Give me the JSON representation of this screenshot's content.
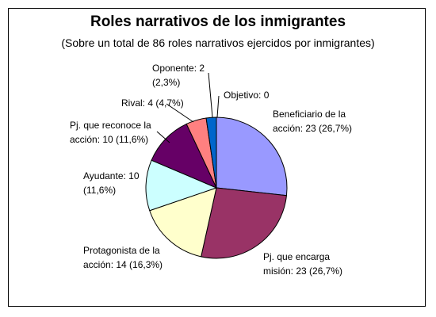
{
  "chart_data": {
    "type": "pie",
    "title": "Roles narrativos de los inmigrantes",
    "subtitle": "(Sobre un total de 86 roles narrativos ejercidos por inmigrantes)",
    "total": 86,
    "slices": [
      {
        "label": "Objetivo",
        "value": 0,
        "percent": "",
        "text": [
          "Objetivo: 0"
        ],
        "color": "#ffffff"
      },
      {
        "label": "Beneficiario de la acción",
        "value": 23,
        "percent": "26,7%",
        "text": [
          "Beneficiario de la",
          "acción: 23 (26,7%)"
        ],
        "color": "#9999ff"
      },
      {
        "label": "Pj. que encarga misión",
        "value": 23,
        "percent": "26,7%",
        "text": [
          "Pj. que encarga",
          "misión: 23 (26,7%)"
        ],
        "color": "#993366"
      },
      {
        "label": "Protagonista de la acción",
        "value": 14,
        "percent": "16,3%",
        "text": [
          "Protagonista de la",
          "acción: 14 (16,3%)"
        ],
        "color": "#ffffcc"
      },
      {
        "label": "Ayudante",
        "value": 10,
        "percent": "11,6%",
        "text": [
          "Ayudante: 10",
          "(11,6%)"
        ],
        "color": "#ccffff"
      },
      {
        "label": "Pj. que reconoce la acción",
        "value": 10,
        "percent": "11,6%",
        "text": [
          "Pj. que reconoce la",
          "acción: 10 (11,6%)"
        ],
        "color": "#660066"
      },
      {
        "label": "Rival",
        "value": 4,
        "percent": "4,7%",
        "text": [
          "Rival: 4 (4,7%)"
        ],
        "color": "#ff8080"
      },
      {
        "label": "Oponente",
        "value": 2,
        "percent": "2,3%",
        "text": [
          "Oponente: 2",
          "(2,3%)"
        ],
        "color": "#0066cc"
      }
    ],
    "start_angle_deg": 90,
    "direction": "clockwise",
    "legend": "none"
  }
}
